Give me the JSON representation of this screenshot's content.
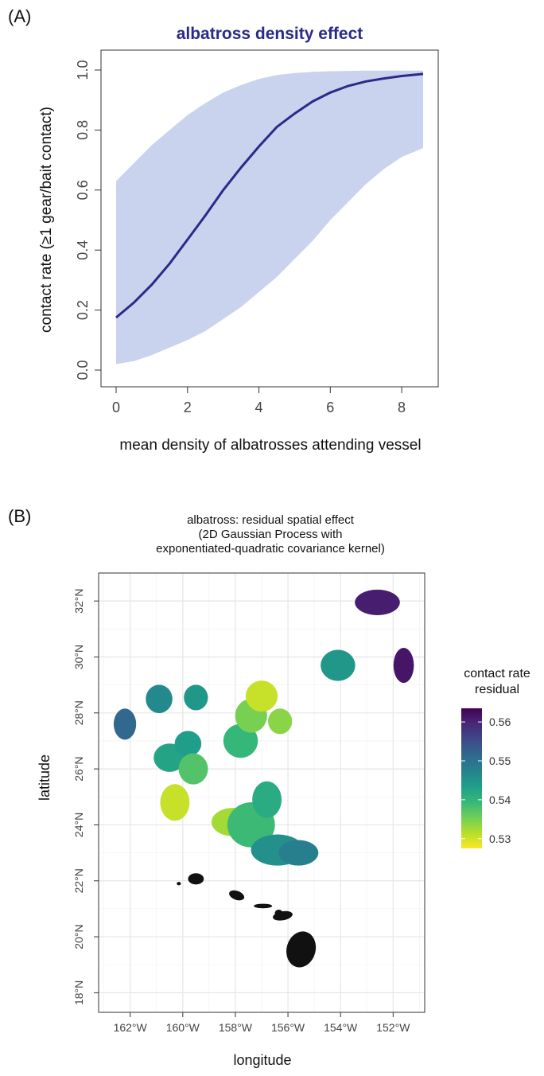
{
  "panels": {
    "a_label": "(A)",
    "b_label": "(B)"
  },
  "chart_data": [
    {
      "type": "line",
      "panel": "(A)",
      "title": "albatross density effect",
      "title_color": "#2b2a8a",
      "xlabel": "mean density of albatrosses attending vessel",
      "ylabel": "contact rate (≥1 gear/bait contact)",
      "xlim": [
        0,
        8.6
      ],
      "ylim": [
        0,
        1
      ],
      "xticks": [
        "0",
        "2",
        "4",
        "6",
        "8"
      ],
      "yticks": [
        "0.0",
        "0.2",
        "0.4",
        "0.6",
        "0.8",
        "1.0"
      ],
      "line_color": "#2b2a8a",
      "band_color": "#c9d3ee",
      "series": [
        {
          "x": [
            0,
            0.5,
            1,
            1.5,
            2,
            2.5,
            3,
            3.5,
            4,
            4.5,
            5,
            5.5,
            6,
            6.5,
            7,
            7.5,
            8,
            8.6
          ],
          "values": [
            0.175,
            0.225,
            0.285,
            0.355,
            0.435,
            0.515,
            0.6,
            0.675,
            0.745,
            0.81,
            0.855,
            0.895,
            0.925,
            0.947,
            0.962,
            0.972,
            0.98,
            0.987
          ],
          "lower": [
            0.02,
            0.03,
            0.05,
            0.075,
            0.1,
            0.13,
            0.17,
            0.21,
            0.26,
            0.31,
            0.37,
            0.43,
            0.5,
            0.56,
            0.62,
            0.67,
            0.71,
            0.74
          ],
          "upper": [
            0.63,
            0.69,
            0.75,
            0.8,
            0.85,
            0.89,
            0.925,
            0.95,
            0.97,
            0.983,
            0.99,
            0.994,
            0.996,
            0.997,
            0.998,
            0.998,
            0.998,
            0.998
          ]
        }
      ]
    },
    {
      "type": "heatmap",
      "panel": "(B)",
      "title": "albatross: residual spatial effect",
      "subtitle": [
        "(2D Gaussian Process with",
        "exponentiated-quadratic covariance kernel)"
      ],
      "xlabel": "longitude",
      "ylabel": "latitude",
      "xlim": [
        -163.2,
        -150.8
      ],
      "ylim": [
        17.3,
        33.0
      ],
      "xticks": [
        {
          "value": -162,
          "label": "162°W"
        },
        {
          "value": -160,
          "label": "160°W"
        },
        {
          "value": -158,
          "label": "158°W"
        },
        {
          "value": -156,
          "label": "156°W"
        },
        {
          "value": -154,
          "label": "154°W"
        },
        {
          "value": -152,
          "label": "152°W"
        }
      ],
      "yticks": [
        {
          "value": 18,
          "label": "18°N"
        },
        {
          "value": 20,
          "label": "20°N"
        },
        {
          "value": 22,
          "label": "22°N"
        },
        {
          "value": 24,
          "label": "24°N"
        },
        {
          "value": 26,
          "label": "26°N"
        },
        {
          "value": 28,
          "label": "28°N"
        },
        {
          "value": 30,
          "label": "30°N"
        },
        {
          "value": 32,
          "label": "32°N"
        }
      ],
      "legend_title": [
        "contact rate",
        "residual"
      ],
      "legend_range": [
        0.5275,
        0.5635
      ],
      "legend_ticks": [
        {
          "value": 0.56,
          "label": "0.56"
        },
        {
          "value": 0.55,
          "label": "0.55"
        },
        {
          "value": 0.54,
          "label": "0.54"
        },
        {
          "value": 0.53,
          "label": "0.53"
        }
      ],
      "colormap": [
        "#fde725",
        "#b5de2b",
        "#6ece58",
        "#35b779",
        "#1f9e89",
        "#26828e",
        "#31688e",
        "#3e4989",
        "#482878",
        "#440154"
      ],
      "land_color": "#111111",
      "regions": [
        {
          "lon": -162.2,
          "lat": 27.6,
          "rx": 0.42,
          "ry": 0.55,
          "value": 0.5515
        },
        {
          "lon": -160.9,
          "lat": 28.5,
          "rx": 0.5,
          "ry": 0.5,
          "value": 0.5465
        },
        {
          "lon": -159.5,
          "lat": 28.55,
          "rx": 0.45,
          "ry": 0.45,
          "value": 0.5445
        },
        {
          "lon": -160.5,
          "lat": 26.4,
          "rx": 0.6,
          "ry": 0.5,
          "value": 0.5425
        },
        {
          "lon": -159.8,
          "lat": 26.9,
          "rx": 0.5,
          "ry": 0.45,
          "value": 0.5435
        },
        {
          "lon": -159.6,
          "lat": 26.0,
          "rx": 0.55,
          "ry": 0.55,
          "value": 0.5375
        },
        {
          "lon": -160.3,
          "lat": 24.8,
          "rx": 0.55,
          "ry": 0.65,
          "value": 0.5305
        },
        {
          "lon": -158.1,
          "lat": 24.1,
          "rx": 0.8,
          "ry": 0.5,
          "value": 0.5325
        },
        {
          "lon": -157.4,
          "lat": 24.0,
          "rx": 0.9,
          "ry": 0.8,
          "value": 0.539
        },
        {
          "lon": -156.8,
          "lat": 24.9,
          "rx": 0.55,
          "ry": 0.65,
          "value": 0.5415
        },
        {
          "lon": -156.4,
          "lat": 23.1,
          "rx": 1.0,
          "ry": 0.55,
          "value": 0.5455
        },
        {
          "lon": -155.6,
          "lat": 23.0,
          "rx": 0.75,
          "ry": 0.45,
          "value": 0.548
        },
        {
          "lon": -157.8,
          "lat": 27.0,
          "rx": 0.65,
          "ry": 0.6,
          "value": 0.5395
        },
        {
          "lon": -157.4,
          "lat": 27.9,
          "rx": 0.6,
          "ry": 0.6,
          "value": 0.535
        },
        {
          "lon": -157.0,
          "lat": 28.6,
          "rx": 0.6,
          "ry": 0.55,
          "value": 0.5305
        },
        {
          "lon": -156.3,
          "lat": 27.7,
          "rx": 0.45,
          "ry": 0.45,
          "value": 0.534
        },
        {
          "lon": -154.1,
          "lat": 29.7,
          "rx": 0.65,
          "ry": 0.55,
          "value": 0.5445
        },
        {
          "lon": -152.6,
          "lat": 31.95,
          "rx": 0.85,
          "ry": 0.45,
          "value": 0.5605
        },
        {
          "lon": -151.6,
          "lat": 29.7,
          "rx": 0.38,
          "ry": 0.62,
          "value": 0.5615
        }
      ]
    }
  ]
}
